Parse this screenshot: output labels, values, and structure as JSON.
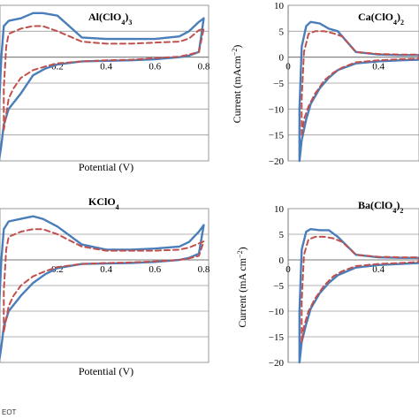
{
  "footer_text": "EOT",
  "chart_data": [
    {
      "type": "line",
      "panel_id": "p1",
      "title": "Al(ClO4)3",
      "title_parts": [
        {
          "t": "Al(ClO"
        },
        {
          "t": "4",
          "sub": true
        },
        {
          "t": ")"
        },
        {
          "t": "3",
          "sub": true
        }
      ],
      "xlabel": "Potential (V)",
      "ylabel": "",
      "xlim": [
        -0.05,
        0.82
      ],
      "ylim": [
        -20,
        10
      ],
      "xticks": [
        0.2,
        0.4,
        0.6,
        0.8
      ],
      "xtick_labels": [
        "0.2",
        "0.4",
        "0.6",
        "0.8"
      ],
      "yticks": [],
      "grid": "horizontal",
      "series": [
        {
          "style": "solid",
          "color": "#4a7eba",
          "x": [
            -0.04,
            -0.04,
            -0.03,
            -0.02,
            0.0,
            0.05,
            0.1,
            0.14,
            0.2,
            0.3,
            0.4,
            0.5,
            0.6,
            0.7,
            0.74,
            0.78,
            0.8,
            0.78,
            0.74,
            0.7,
            0.65,
            0.6,
            0.5,
            0.4,
            0.3,
            0.2,
            0.15,
            0.1,
            0.05,
            0.0,
            -0.02,
            -0.03,
            -0.04
          ],
          "y": [
            -20,
            -10,
            0,
            6,
            7,
            7.5,
            8.5,
            8.5,
            8.0,
            3.8,
            3.5,
            3.5,
            3.5,
            4.0,
            5.0,
            6.8,
            7.5,
            1.0,
            0.3,
            0.0,
            -0.2,
            -0.4,
            -0.6,
            -0.7,
            -0.8,
            -1.4,
            -2.2,
            -3.5,
            -7.0,
            -10.0,
            -13.0,
            -17.0,
            -20.0
          ]
        },
        {
          "style": "dashed",
          "color": "#c0504d",
          "x": [
            -0.02,
            -0.02,
            -0.01,
            0.0,
            0.05,
            0.1,
            0.14,
            0.2,
            0.3,
            0.4,
            0.5,
            0.6,
            0.7,
            0.74,
            0.78,
            0.8,
            0.78,
            0.74,
            0.7,
            0.6,
            0.5,
            0.4,
            0.3,
            0.2,
            0.15,
            0.1,
            0.05,
            0.02,
            0.0,
            -0.02
          ],
          "y": [
            -14,
            -6,
            2,
            4.5,
            5.5,
            6.0,
            6.0,
            5.0,
            3.0,
            2.6,
            2.6,
            2.8,
            3.0,
            3.6,
            5.2,
            5.5,
            1.0,
            0.5,
            0.1,
            -0.2,
            -0.5,
            -0.6,
            -0.8,
            -1.2,
            -1.8,
            -2.5,
            -4.0,
            -6.0,
            -8.0,
            -14.0
          ]
        }
      ]
    },
    {
      "type": "line",
      "panel_id": "p2",
      "title": "Ca(ClO4)2",
      "title_parts": [
        {
          "t": "Ca(ClO"
        },
        {
          "t": "4",
          "sub": true
        },
        {
          "t": ")"
        },
        {
          "t": "2",
          "sub": true
        }
      ],
      "xlabel": "",
      "ylabel": "Current (mAcm−2)",
      "ylabel_parts": [
        {
          "t": "Current (mAcm"
        },
        {
          "t": "−2",
          "sup": true
        },
        {
          "t": ")"
        }
      ],
      "xlim": [
        0,
        0.58
      ],
      "ylim": [
        -20,
        10
      ],
      "xticks": [
        0,
        0.4
      ],
      "xtick_labels": [
        "0",
        "0.4"
      ],
      "yticks": [
        10,
        5,
        0,
        -5,
        -10,
        -15,
        -20
      ],
      "ytick_labels": [
        "10",
        "5",
        "0",
        "−5",
        "−10",
        "−15",
        "−20"
      ],
      "grid": "horizontal",
      "series": [
        {
          "style": "solid",
          "color": "#4a7eba",
          "x": [
            0.05,
            0.05,
            0.06,
            0.08,
            0.1,
            0.14,
            0.18,
            0.22,
            0.3,
            0.4,
            0.5,
            0.58,
            0.58,
            0.5,
            0.4,
            0.3,
            0.22,
            0.18,
            0.14,
            0.1,
            0.08,
            0.06,
            0.05
          ],
          "y": [
            -20,
            -10,
            2,
            6,
            6.8,
            6.5,
            5.5,
            5.0,
            1.0,
            0.5,
            0.4,
            0.4,
            -0.5,
            -0.6,
            -0.8,
            -1.2,
            -2.5,
            -4.0,
            -6.0,
            -9.0,
            -12.0,
            -16.0,
            -20.0
          ]
        },
        {
          "style": "dashed",
          "color": "#c0504d",
          "x": [
            0.06,
            0.06,
            0.07,
            0.09,
            0.12,
            0.16,
            0.2,
            0.24,
            0.3,
            0.4,
            0.5,
            0.58,
            0.58,
            0.5,
            0.4,
            0.3,
            0.24,
            0.2,
            0.16,
            0.12,
            0.09,
            0.07,
            0.06
          ],
          "y": [
            -15,
            -8,
            1,
            4.5,
            5.0,
            5.0,
            4.6,
            4.0,
            1.0,
            0.6,
            0.5,
            0.5,
            -0.3,
            -0.4,
            -0.6,
            -1.0,
            -2.0,
            -3.0,
            -4.5,
            -7.0,
            -9.5,
            -12.0,
            -15.0
          ]
        }
      ]
    },
    {
      "type": "line",
      "panel_id": "p3",
      "title": "KClO4",
      "title_parts": [
        {
          "t": "KClO"
        },
        {
          "t": "4",
          "sub": true
        }
      ],
      "xlabel": "Potential (V)",
      "ylabel": "",
      "xlim": [
        -0.05,
        0.82
      ],
      "ylim": [
        -20,
        10
      ],
      "xticks": [
        0.2,
        0.4,
        0.6,
        0.8
      ],
      "xtick_labels": [
        "0.2",
        "0.4",
        "0.6",
        "0.8"
      ],
      "yticks": [],
      "grid": "horizontal",
      "series": [
        {
          "style": "solid",
          "color": "#4a7eba",
          "x": [
            -0.04,
            -0.04,
            -0.03,
            -0.02,
            0.0,
            0.05,
            0.1,
            0.14,
            0.2,
            0.3,
            0.4,
            0.5,
            0.6,
            0.7,
            0.74,
            0.78,
            0.8,
            0.78,
            0.74,
            0.7,
            0.65,
            0.6,
            0.5,
            0.4,
            0.3,
            0.2,
            0.15,
            0.1,
            0.05,
            0.0,
            -0.02,
            -0.03,
            -0.04
          ],
          "y": [
            -20,
            -10,
            0,
            6,
            7.5,
            8.0,
            8.5,
            8.0,
            6.5,
            3.0,
            2.0,
            2.0,
            2.2,
            2.6,
            3.5,
            5.5,
            6.8,
            1.2,
            0.4,
            0.0,
            -0.2,
            -0.4,
            -0.6,
            -0.7,
            -0.8,
            -1.6,
            -2.8,
            -4.5,
            -7.0,
            -10.0,
            -13.0,
            -17.0,
            -20.0
          ]
        },
        {
          "style": "dashed",
          "color": "#c0504d",
          "x": [
            -0.02,
            -0.02,
            -0.01,
            0.0,
            0.05,
            0.1,
            0.14,
            0.2,
            0.3,
            0.4,
            0.5,
            0.6,
            0.7,
            0.74,
            0.78,
            0.8,
            0.78,
            0.74,
            0.7,
            0.6,
            0.5,
            0.4,
            0.3,
            0.2,
            0.15,
            0.1,
            0.05,
            0.02,
            0.0,
            -0.02
          ],
          "y": [
            -14,
            -6,
            2,
            4.5,
            5.5,
            6.0,
            6.0,
            5.0,
            2.6,
            1.8,
            1.8,
            1.8,
            2.0,
            2.4,
            3.2,
            3.6,
            0.8,
            0.3,
            0.0,
            -0.3,
            -0.5,
            -0.6,
            -0.8,
            -1.4,
            -2.2,
            -3.2,
            -5.0,
            -7.0,
            -9.0,
            -14.0
          ]
        }
      ]
    },
    {
      "type": "line",
      "panel_id": "p4",
      "title": "Ba(ClO4)2",
      "title_parts": [
        {
          "t": "Ba(ClO"
        },
        {
          "t": "4",
          "sub": true
        },
        {
          "t": ")"
        },
        {
          "t": "2",
          "sub": true
        }
      ],
      "xlabel": "",
      "ylabel": "Current (mA cm−2)",
      "ylabel_parts": [
        {
          "t": "Current (mA cm"
        },
        {
          "t": "−2",
          "sup": true
        },
        {
          "t": ")"
        }
      ],
      "xlim": [
        0,
        0.58
      ],
      "ylim": [
        -20,
        10
      ],
      "xticks": [
        0,
        0.4
      ],
      "xtick_labels": [
        "0",
        "0.4"
      ],
      "yticks": [
        10,
        5,
        0,
        -5,
        -10,
        -15,
        -20
      ],
      "ytick_labels": [
        "10",
        "5",
        "0",
        "−5",
        "−10",
        "−15",
        "−20"
      ],
      "grid": "horizontal",
      "series": [
        {
          "style": "solid",
          "color": "#4a7eba",
          "x": [
            0.05,
            0.05,
            0.06,
            0.08,
            0.1,
            0.14,
            0.18,
            0.22,
            0.3,
            0.4,
            0.5,
            0.58,
            0.58,
            0.5,
            0.4,
            0.3,
            0.22,
            0.18,
            0.14,
            0.1,
            0.08,
            0.06,
            0.05
          ],
          "y": [
            -20,
            -10,
            2,
            5.5,
            6.0,
            5.8,
            5.8,
            4.5,
            1.0,
            0.5,
            0.4,
            0.4,
            -0.6,
            -0.8,
            -1.0,
            -1.5,
            -3.0,
            -4.5,
            -6.5,
            -9.5,
            -12.5,
            -16.0,
            -20.0
          ]
        },
        {
          "style": "dashed",
          "color": "#c0504d",
          "x": [
            0.06,
            0.06,
            0.07,
            0.09,
            0.12,
            0.16,
            0.2,
            0.24,
            0.3,
            0.4,
            0.5,
            0.58,
            0.58,
            0.5,
            0.4,
            0.3,
            0.24,
            0.2,
            0.16,
            0.12,
            0.09,
            0.07,
            0.06
          ],
          "y": [
            -16,
            -8,
            1,
            4.0,
            4.5,
            4.5,
            4.2,
            3.5,
            1.0,
            0.6,
            0.5,
            0.5,
            -0.4,
            -0.6,
            -0.8,
            -1.2,
            -2.2,
            -3.2,
            -5.0,
            -7.5,
            -10.0,
            -13.0,
            -16.0
          ]
        }
      ]
    }
  ]
}
